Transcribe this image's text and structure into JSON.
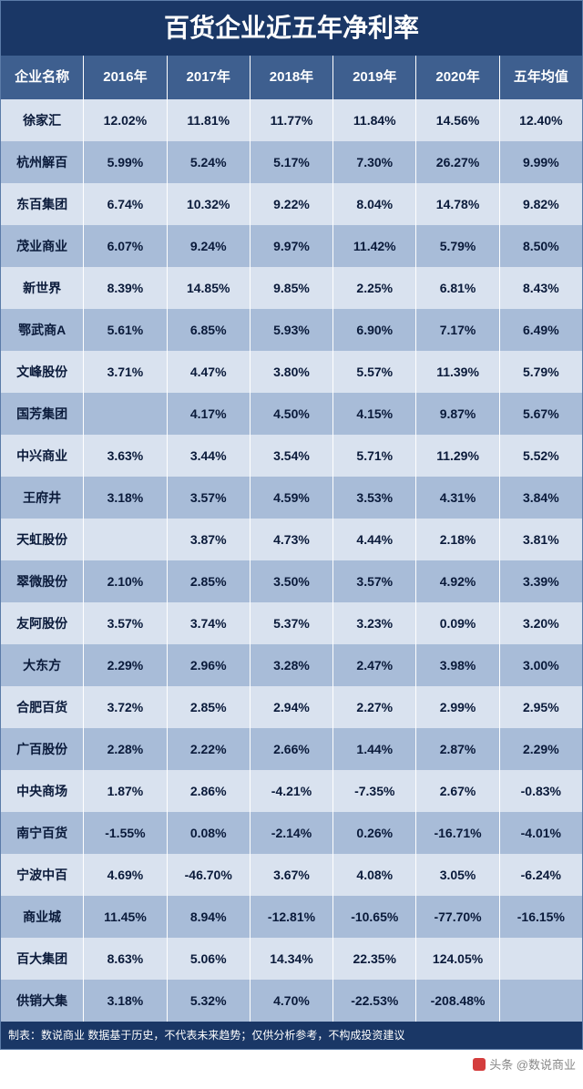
{
  "colors": {
    "title_bg": "#1a3766",
    "header_bg": "#3e5f8f",
    "row_light": "#d9e2ef",
    "row_dark": "#a8bcd8",
    "footnote_bg": "#1a3766"
  },
  "title": "百货企业近五年净利率",
  "headers": [
    "企业名称",
    "2016年",
    "2017年",
    "2018年",
    "2019年",
    "2020年",
    "五年均值"
  ],
  "rows": [
    [
      "徐家汇",
      "12.02%",
      "11.81%",
      "11.77%",
      "11.84%",
      "14.56%",
      "12.40%"
    ],
    [
      "杭州解百",
      "5.99%",
      "5.24%",
      "5.17%",
      "7.30%",
      "26.27%",
      "9.99%"
    ],
    [
      "东百集团",
      "6.74%",
      "10.32%",
      "9.22%",
      "8.04%",
      "14.78%",
      "9.82%"
    ],
    [
      "茂业商业",
      "6.07%",
      "9.24%",
      "9.97%",
      "11.42%",
      "5.79%",
      "8.50%"
    ],
    [
      "新世界",
      "8.39%",
      "14.85%",
      "9.85%",
      "2.25%",
      "6.81%",
      "8.43%"
    ],
    [
      "鄂武商A",
      "5.61%",
      "6.85%",
      "5.93%",
      "6.90%",
      "7.17%",
      "6.49%"
    ],
    [
      "文峰股份",
      "3.71%",
      "4.47%",
      "3.80%",
      "5.57%",
      "11.39%",
      "5.79%"
    ],
    [
      "国芳集团",
      "",
      "4.17%",
      "4.50%",
      "4.15%",
      "9.87%",
      "5.67%"
    ],
    [
      "中兴商业",
      "3.63%",
      "3.44%",
      "3.54%",
      "5.71%",
      "11.29%",
      "5.52%"
    ],
    [
      "王府井",
      "3.18%",
      "3.57%",
      "4.59%",
      "3.53%",
      "4.31%",
      "3.84%"
    ],
    [
      "天虹股份",
      "",
      "3.87%",
      "4.73%",
      "4.44%",
      "2.18%",
      "3.81%"
    ],
    [
      "翠微股份",
      "2.10%",
      "2.85%",
      "3.50%",
      "3.57%",
      "4.92%",
      "3.39%"
    ],
    [
      "友阿股份",
      "3.57%",
      "3.74%",
      "5.37%",
      "3.23%",
      "0.09%",
      "3.20%"
    ],
    [
      "大东方",
      "2.29%",
      "2.96%",
      "3.28%",
      "2.47%",
      "3.98%",
      "3.00%"
    ],
    [
      "合肥百货",
      "3.72%",
      "2.85%",
      "2.94%",
      "2.27%",
      "2.99%",
      "2.95%"
    ],
    [
      "广百股份",
      "2.28%",
      "2.22%",
      "2.66%",
      "1.44%",
      "2.87%",
      "2.29%"
    ],
    [
      "中央商场",
      "1.87%",
      "2.86%",
      "-4.21%",
      "-7.35%",
      "2.67%",
      "-0.83%"
    ],
    [
      "南宁百货",
      "-1.55%",
      "0.08%",
      "-2.14%",
      "0.26%",
      "-16.71%",
      "-4.01%"
    ],
    [
      "宁波中百",
      "4.69%",
      "-46.70%",
      "3.67%",
      "4.08%",
      "3.05%",
      "-6.24%"
    ],
    [
      "商业城",
      "11.45%",
      "8.94%",
      "-12.81%",
      "-10.65%",
      "-77.70%",
      "-16.15%"
    ],
    [
      "百大集团",
      "8.63%",
      "5.06%",
      "14.34%",
      "22.35%",
      "124.05%",
      ""
    ],
    [
      "供销大集",
      "3.18%",
      "5.32%",
      "4.70%",
      "-22.53%",
      "-208.48%",
      ""
    ]
  ],
  "footnote": "制表：数说商业 数据基于历史，不代表未来趋势；仅供分析参考，不构成投资建议",
  "credit": "头条 @数说商业"
}
